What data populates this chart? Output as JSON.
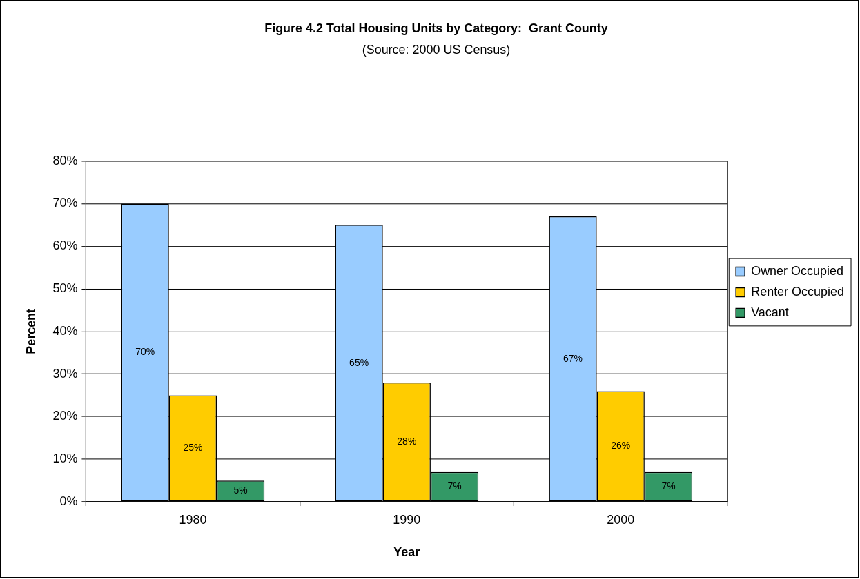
{
  "chart_data": {
    "type": "bar",
    "title": "Figure 4.2 Total Housing Units by Category:  Grant County",
    "subtitle": "(Source: 2000 US Census)",
    "xlabel": "Year",
    "ylabel": "Percent",
    "categories": [
      "1980",
      "1990",
      "2000"
    ],
    "series": [
      {
        "name": "Owner Occupied",
        "color": "#99ccff",
        "values": [
          70,
          65,
          67
        ],
        "value_labels": [
          "70%",
          "65%",
          "67%"
        ]
      },
      {
        "name": "Renter Occupied",
        "color": "#ffcc00",
        "values": [
          25,
          28,
          26
        ],
        "value_labels": [
          "25%",
          "28%",
          "26%"
        ]
      },
      {
        "name": "Vacant",
        "color": "#339966",
        "values": [
          5,
          7,
          7
        ],
        "value_labels": [
          "5%",
          "7%",
          "7%"
        ]
      }
    ],
    "ylim": [
      0,
      80
    ],
    "yticks": [
      {
        "value": 0,
        "label": "0%"
      },
      {
        "value": 10,
        "label": "10%"
      },
      {
        "value": 20,
        "label": "20%"
      },
      {
        "value": 30,
        "label": "30%"
      },
      {
        "value": 40,
        "label": "40%"
      },
      {
        "value": 50,
        "label": "50%"
      },
      {
        "value": 60,
        "label": "60%"
      },
      {
        "value": 70,
        "label": "70%"
      },
      {
        "value": 80,
        "label": "80%"
      }
    ],
    "grid": "y",
    "legend": "right"
  }
}
